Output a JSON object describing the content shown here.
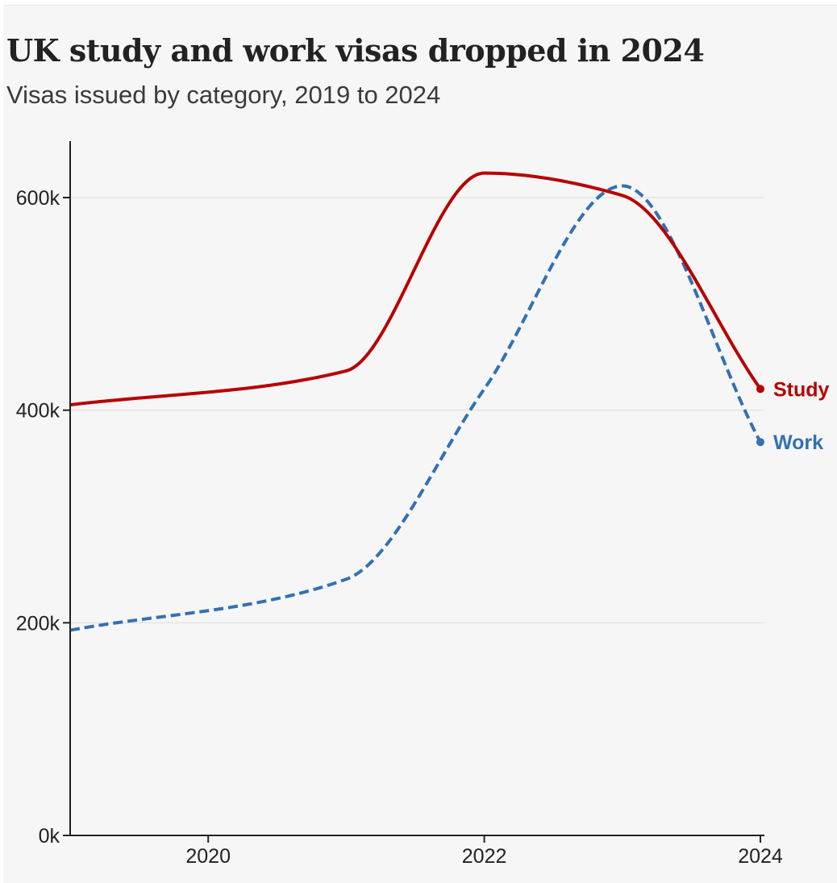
{
  "header": {
    "title": "UK study and work visas dropped in 2024",
    "subtitle": "Visas issued by category, 2019 to 2024"
  },
  "chart_data": {
    "type": "line",
    "title": "UK study and work visas dropped in 2024",
    "subtitle": "Visas issued by category, 2019 to 2024",
    "xlabel": "",
    "ylabel": "",
    "x": [
      2019,
      2021,
      2022,
      2023,
      2024
    ],
    "x_ticks": [
      2020,
      2022,
      2024
    ],
    "x_tick_labels": [
      "2020",
      "2022",
      "2024"
    ],
    "xlim": [
      2019,
      2024
    ],
    "y_ticks": [
      0,
      200000,
      400000,
      600000
    ],
    "y_tick_labels": [
      "0k",
      "200k",
      "400k",
      "600k"
    ],
    "ylim": [
      0,
      650000
    ],
    "grid": "horizontal",
    "legend": "direct labels at line ends",
    "series": [
      {
        "name": "Study",
        "values": [
          405000,
          437000,
          623000,
          602000,
          420000
        ],
        "color": "#b80000",
        "line_style": "solid"
      },
      {
        "name": "Work",
        "values": [
          193000,
          241000,
          420000,
          611000,
          370000
        ],
        "color": "#3271b3",
        "line_style": "dashed"
      }
    ]
  }
}
